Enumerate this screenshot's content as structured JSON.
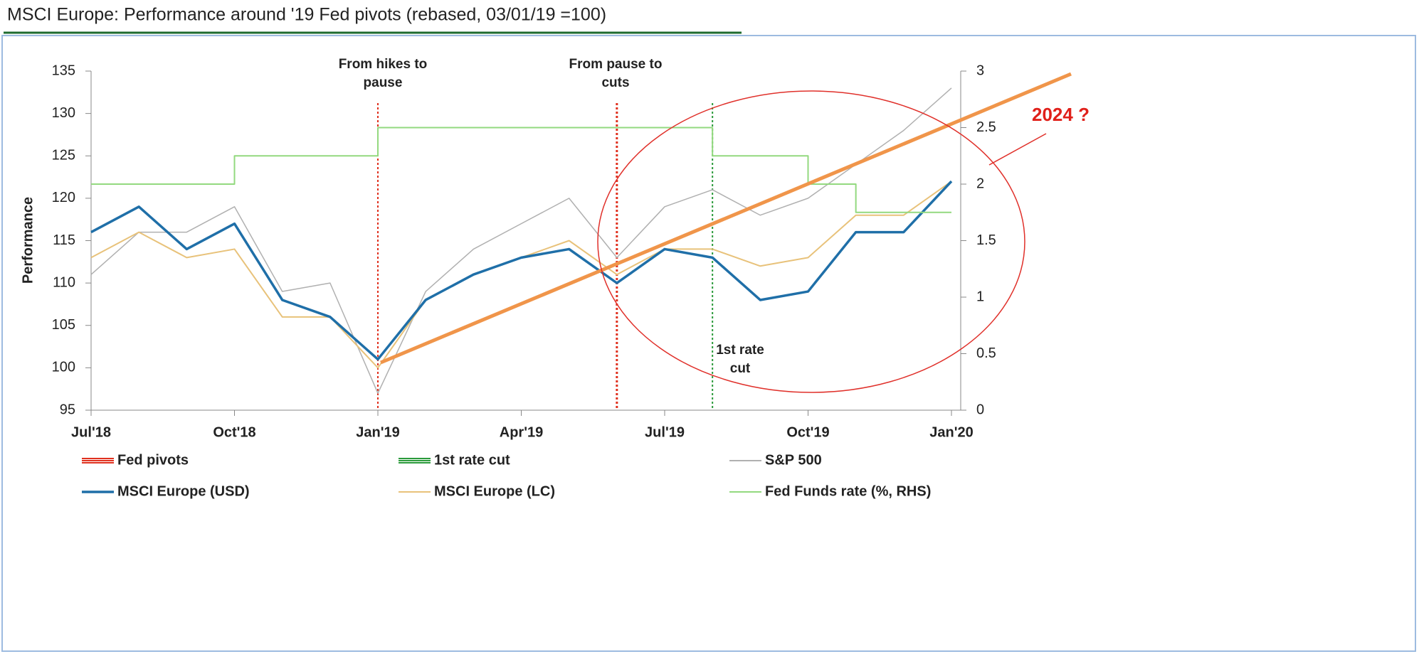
{
  "chart_data": {
    "type": "line",
    "title": "MSCI Europe: Performance around '19 Fed pivots (rebased, 03/01/19 =100)",
    "y_label": "Performance",
    "x": [
      "2018-07",
      "2018-08",
      "2018-09",
      "2018-10",
      "2018-11",
      "2018-12",
      "2019-01",
      "2019-02",
      "2019-03",
      "2019-04",
      "2019-05",
      "2019-06",
      "2019-07",
      "2019-08",
      "2019-09",
      "2019-10",
      "2019-11",
      "2019-12",
      "2020-01"
    ],
    "xlim": [
      "2018-07",
      "2020-01"
    ],
    "xticks": [
      {
        "value": "2018-07",
        "label": "Jul'18"
      },
      {
        "value": "2018-10",
        "label": "Oct'18"
      },
      {
        "value": "2019-01",
        "label": "Jan'19"
      },
      {
        "value": "2019-04",
        "label": "Apr'19"
      },
      {
        "value": "2019-07",
        "label": "Jul'19"
      },
      {
        "value": "2019-10",
        "label": "Oct'19"
      },
      {
        "value": "2020-01",
        "label": "Jan'20"
      }
    ],
    "ylim": [
      95,
      135
    ],
    "yticks": [
      95,
      100,
      105,
      110,
      115,
      120,
      125,
      130,
      135
    ],
    "y2lim": [
      0,
      3
    ],
    "y2ticks": [
      0,
      0.5,
      1,
      1.5,
      2,
      2.5,
      3
    ],
    "series": [
      {
        "name": "S&P 500",
        "color": "#b0b0b0",
        "values": [
          111,
          116,
          116,
          119,
          109,
          110,
          97,
          109,
          114,
          117,
          120,
          113,
          119,
          121,
          118,
          120,
          124,
          128,
          133
        ]
      },
      {
        "name": "MSCI Europe (LC)",
        "color": "#e8c27a",
        "values": [
          113,
          116,
          113,
          114,
          106,
          106,
          100,
          108,
          111,
          113,
          115,
          111,
          114,
          114,
          112,
          113,
          118,
          118,
          122
        ]
      },
      {
        "name": "MSCI Europe (USD)",
        "color": "#1f6fa8",
        "values": [
          116,
          119,
          114,
          117,
          108,
          106,
          101,
          108,
          111,
          113,
          114,
          110,
          114,
          113,
          108,
          109,
          116,
          116,
          122
        ]
      },
      {
        "name": "Fed Funds rate (%, RHS)",
        "color": "#93d97f",
        "axis": "y2",
        "step": true,
        "values": [
          2,
          2,
          2,
          2.25,
          2.25,
          2.25,
          2.5,
          2.5,
          2.5,
          2.5,
          2.5,
          2.5,
          2.5,
          2.25,
          2.25,
          2,
          1.75,
          1.75,
          1.75
        ]
      }
    ],
    "events": [
      {
        "name": "Fed pivots",
        "color": "#e0301e",
        "x": [
          "2019-01",
          "2019-06"
        ]
      },
      {
        "name": "1st rate cut",
        "color": "#2a9a3a",
        "x": [
          "2019-08"
        ]
      }
    ],
    "annotations": [
      "From hikes to pause",
      "From pause to cuts",
      "1st rate cut",
      "2024 ?"
    ]
  }
}
